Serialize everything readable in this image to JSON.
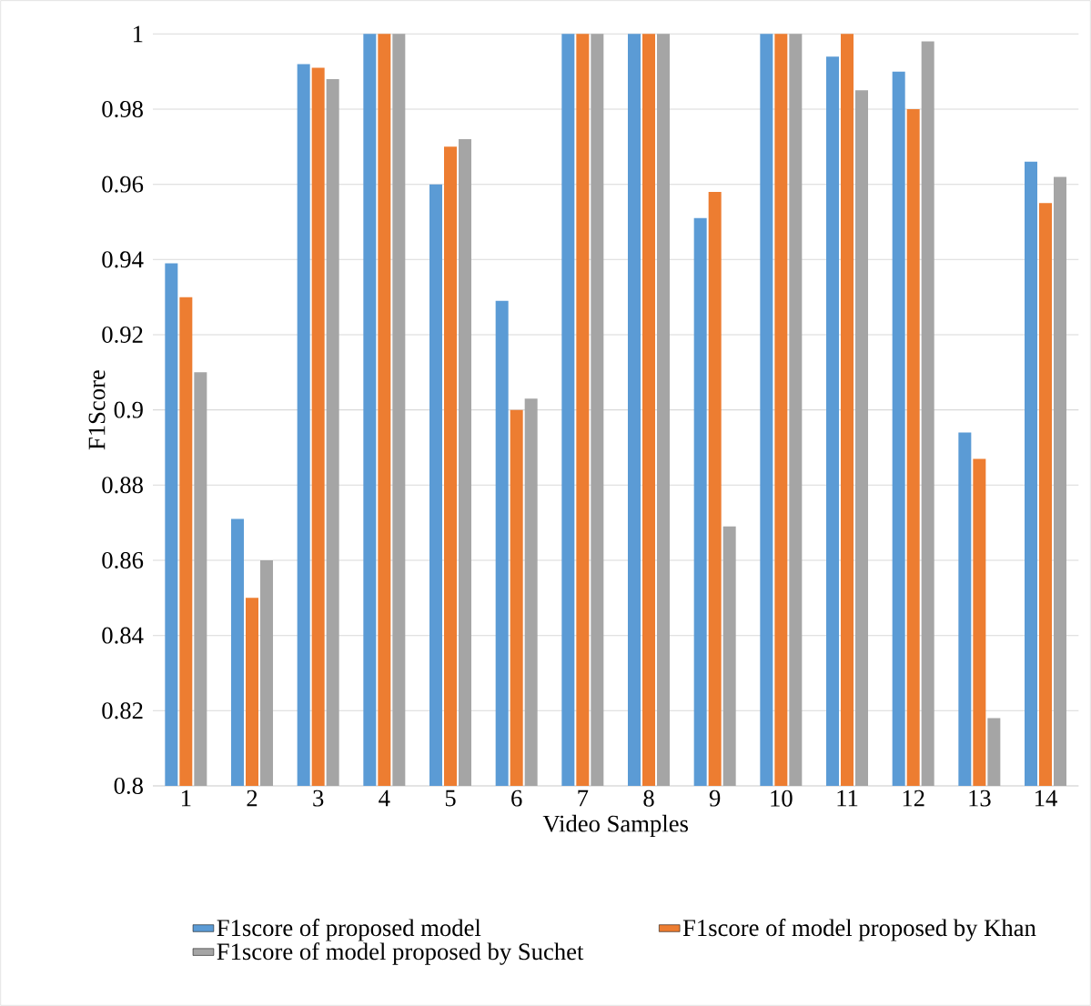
{
  "chart_data": {
    "type": "bar",
    "xlabel": "Video Samples",
    "ylabel": "F1Score",
    "categories": [
      "1",
      "2",
      "3",
      "4",
      "5",
      "6",
      "7",
      "8",
      "9",
      "10",
      "11",
      "12",
      "13",
      "14"
    ],
    "series": [
      {
        "name": "F1score of proposed model",
        "color": "#5b9bd5",
        "values": [
          0.939,
          0.871,
          0.992,
          1,
          0.96,
          0.929,
          1,
          1,
          0.951,
          1,
          0.994,
          0.99,
          0.894,
          0.966
        ]
      },
      {
        "name": "F1score of model proposed by Khan",
        "color": "#ed7d31",
        "values": [
          0.93,
          0.85,
          0.991,
          1,
          0.97,
          0.9,
          1,
          1,
          0.958,
          1,
          1,
          0.98,
          0.887,
          0.955
        ]
      },
      {
        "name": "F1score of model proposed by Suchet",
        "color": "#a5a5a5",
        "values": [
          0.91,
          0.86,
          0.988,
          1,
          0.972,
          0.903,
          1,
          1,
          0.869,
          1,
          0.985,
          0.998,
          0.818,
          0.962
        ]
      }
    ],
    "ylim": [
      0.8,
      1
    ],
    "yticks": [
      0.8,
      0.82,
      0.84,
      0.86,
      0.88,
      0.9,
      0.92,
      0.94,
      0.96,
      0.98,
      1
    ],
    "grid": "y",
    "legend": "bottom"
  }
}
